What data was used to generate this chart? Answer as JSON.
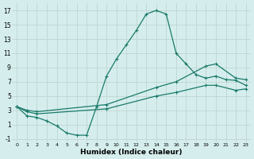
{
  "xlabel": "Humidex (Indice chaleur)",
  "bg_color": "#d5eeed",
  "grid_color": "#c2d8d6",
  "line_color": "#1a7a6a",
  "xlim": [
    -0.5,
    23.5
  ],
  "ylim": [
    -1.5,
    18
  ],
  "xticks": [
    0,
    1,
    2,
    3,
    4,
    5,
    6,
    7,
    8,
    9,
    10,
    11,
    12,
    13,
    14,
    15,
    16,
    17,
    18,
    19,
    20,
    21,
    22,
    23
  ],
  "yticks": [
    -1,
    1,
    3,
    5,
    7,
    9,
    11,
    13,
    15,
    17
  ],
  "line1_x": [
    0,
    1,
    2,
    3,
    4,
    5,
    6,
    7,
    8,
    9,
    10,
    11,
    12,
    13,
    14,
    15,
    16,
    17,
    18,
    19,
    20,
    21,
    22,
    23
  ],
  "line1_y": [
    3.5,
    2.2,
    2.0,
    1.5,
    0.8,
    -0.2,
    -0.5,
    -0.5,
    3.5,
    7.8,
    10.2,
    12.2,
    14.2,
    16.5,
    17.0,
    16.5,
    11.0,
    9.5,
    8.0,
    7.5,
    7.8,
    7.3,
    7.2,
    6.5
  ],
  "line2_x": [
    0,
    1,
    2,
    9,
    14,
    16,
    19,
    20,
    22,
    23
  ],
  "line2_y": [
    3.5,
    3.0,
    2.8,
    3.8,
    6.2,
    7.0,
    9.2,
    9.5,
    7.5,
    7.3
  ],
  "line3_x": [
    0,
    1,
    2,
    9,
    14,
    16,
    19,
    20,
    22,
    23
  ],
  "line3_y": [
    3.5,
    2.8,
    2.5,
    3.2,
    5.0,
    5.5,
    6.5,
    6.5,
    5.8,
    6.0
  ]
}
